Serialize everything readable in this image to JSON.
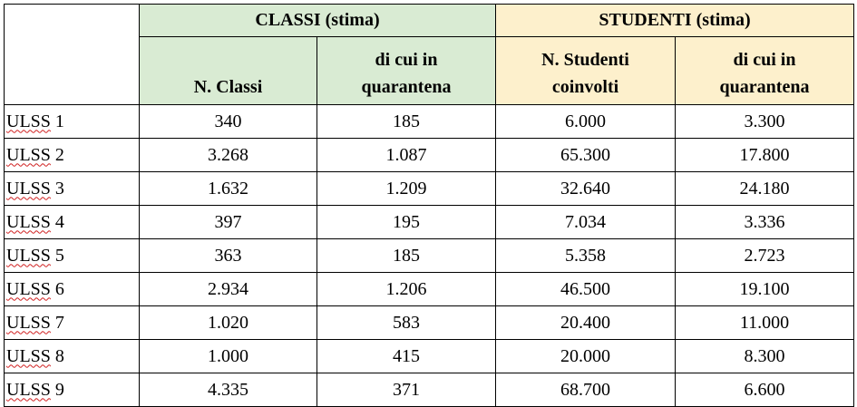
{
  "table": {
    "groups": [
      "CLASSI (stima)",
      "STUDENTI (stima)"
    ],
    "columns": [
      "N. Classi",
      "di cui in quarantena",
      "N. Studenti coinvolti",
      "di cui in quarantena"
    ],
    "rows": [
      [
        "ULSS 1",
        "340",
        "185",
        "6.000",
        "3.300"
      ],
      [
        "ULSS 2",
        "3.268",
        "1.087",
        "65.300",
        "17.800"
      ],
      [
        "ULSS 3",
        "1.632",
        "1.209",
        "32.640",
        "24.180"
      ],
      [
        "ULSS 4",
        "397",
        "195",
        "7.034",
        "3.336"
      ],
      [
        "ULSS 5",
        "363",
        "185",
        "5.358",
        "2.723"
      ],
      [
        "ULSS 6",
        "2.934",
        "1.206",
        "46.500",
        "19.100"
      ],
      [
        "ULSS 7",
        "1.020",
        "583",
        "20.400",
        "11.000"
      ],
      [
        "ULSS 8",
        "1.000",
        "415",
        "20.000",
        "8.300"
      ],
      [
        "ULSS 9",
        "4.335",
        "371",
        "68.700",
        "6.600"
      ]
    ]
  }
}
